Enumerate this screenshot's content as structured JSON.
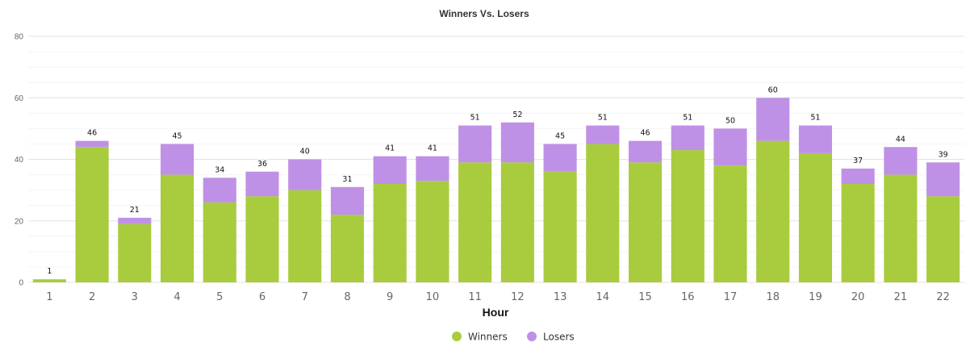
{
  "chart_data": {
    "type": "bar",
    "stacked": true,
    "title": "Winners Vs. Losers",
    "xlabel": "Hour",
    "ylabel": "",
    "ylim": [
      0,
      80
    ],
    "yticks": [
      0,
      20,
      40,
      60,
      80
    ],
    "grid": true,
    "legend_position": "bottom-center",
    "categories": [
      "1",
      "2",
      "3",
      "4",
      "5",
      "6",
      "7",
      "8",
      "9",
      "10",
      "11",
      "12",
      "13",
      "14",
      "15",
      "16",
      "17",
      "18",
      "19",
      "20",
      "21",
      "22"
    ],
    "series": [
      {
        "name": "Winners",
        "color": "#a8cc3e",
        "values": [
          1,
          44,
          19,
          35,
          26,
          28,
          30,
          22,
          32,
          33,
          39,
          39,
          36,
          45,
          39,
          43,
          38,
          46,
          42,
          32,
          35,
          28
        ]
      },
      {
        "name": "Losers",
        "color": "#bf91e6",
        "values": [
          0,
          2,
          2,
          10,
          8,
          8,
          10,
          9,
          9,
          8,
          12,
          13,
          9,
          6,
          7,
          8,
          12,
          14,
          9,
          5,
          9,
          11
        ]
      }
    ],
    "totals": [
      1,
      46,
      21,
      45,
      34,
      36,
      40,
      31,
      41,
      41,
      51,
      52,
      45,
      51,
      46,
      51,
      50,
      60,
      51,
      37,
      44,
      39
    ]
  }
}
